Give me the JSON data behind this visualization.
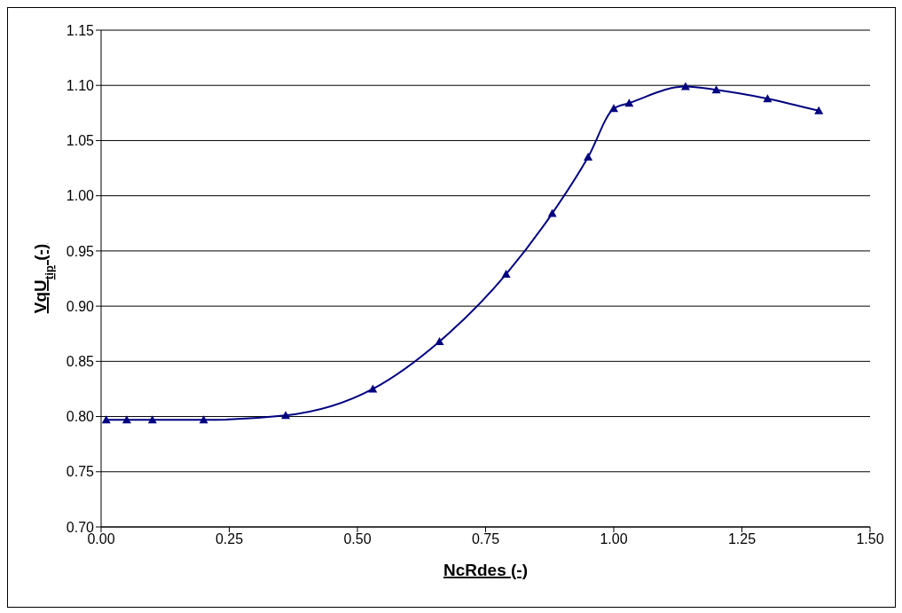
{
  "chart_data": {
    "type": "line",
    "xlabel": "NcRdes (-)",
    "ylabel": "VqU$_{tip}$ (-)",
    "x": [
      0.01,
      0.05,
      0.1,
      0.2,
      0.36,
      0.53,
      0.66,
      0.79,
      0.88,
      0.95,
      1.0,
      1.03,
      1.14,
      1.2,
      1.3,
      1.4
    ],
    "series": [
      {
        "color": "#000080",
        "values": [
          0.797,
          0.797,
          0.797,
          0.797,
          0.801,
          0.825,
          0.868,
          0.929,
          0.984,
          1.035,
          1.079,
          1.084,
          1.099,
          1.096,
          1.088,
          1.077
        ]
      }
    ],
    "xlim": [
      0,
      1.5
    ],
    "xticks": [
      {
        "value": 0,
        "label": "0.00"
      },
      {
        "value": 0.25,
        "label": "0.25"
      },
      {
        "value": 0.5,
        "label": "0.50"
      },
      {
        "value": 0.75,
        "label": "0.75"
      },
      {
        "value": 1,
        "label": "1.00"
      },
      {
        "value": 1.25,
        "label": "1.25"
      },
      {
        "value": 1.5,
        "label": "1.50"
      }
    ],
    "ylim": [
      0.7,
      1.15
    ],
    "yticks": [
      {
        "value": 0.7,
        "label": "0.70"
      },
      {
        "value": 0.75,
        "label": "0.75"
      },
      {
        "value": 0.8,
        "label": "0.80"
      },
      {
        "value": 0.85,
        "label": "0.85"
      },
      {
        "value": 0.9,
        "label": "0.90"
      },
      {
        "value": 0.95,
        "label": "0.95"
      },
      {
        "value": 1,
        "label": "1.00"
      },
      {
        "value": 1.05,
        "label": "1.05"
      },
      {
        "value": 1.1,
        "label": "1.10"
      },
      {
        "value": 1.15,
        "label": "1.15"
      }
    ],
    "grid": "y",
    "marker": "triangle",
    "line_style": "solid"
  }
}
